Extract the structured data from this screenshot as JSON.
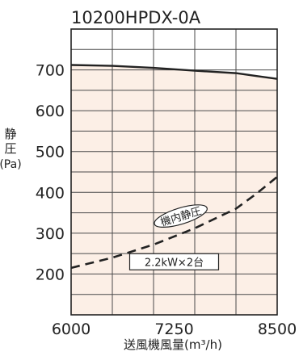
{
  "chart_data": {
    "type": "line",
    "title": "10200HPDX-0A",
    "xlabel": "送風機風量(m³/h)",
    "ylabel_line1": "静",
    "ylabel_line2": "圧",
    "ylabel_unit": "(Pa)",
    "xlim": [
      6000,
      8500
    ],
    "ylim": [
      100,
      800
    ],
    "x_ticks": [
      6000,
      7250,
      8500
    ],
    "y_ticks": [
      200,
      300,
      400,
      500,
      600,
      700
    ],
    "grid": true,
    "series": [
      {
        "name": "",
        "style": "solid",
        "color": "#222222",
        "x": [
          6000,
          6500,
          7000,
          7500,
          8000,
          8250,
          8500
        ],
        "y": [
          712,
          710,
          705,
          698,
          692,
          685,
          678
        ]
      },
      {
        "name": "機内静圧",
        "style": "dashed",
        "color": "#222222",
        "x": [
          6000,
          6500,
          7000,
          7500,
          8000,
          8250,
          8500
        ],
        "y": [
          215,
          240,
          272,
          312,
          360,
          397,
          438
        ]
      }
    ],
    "annotations": [
      {
        "text": "機内静圧",
        "shape": "ellipse",
        "x": 7330,
        "y": 342
      },
      {
        "text": "2.2kW×2台",
        "shape": "box",
        "x": 7250,
        "y": 230
      }
    ],
    "colors": {
      "fill": "#fcefe6",
      "grid": "#4a4a4a",
      "line": "#222222"
    }
  }
}
